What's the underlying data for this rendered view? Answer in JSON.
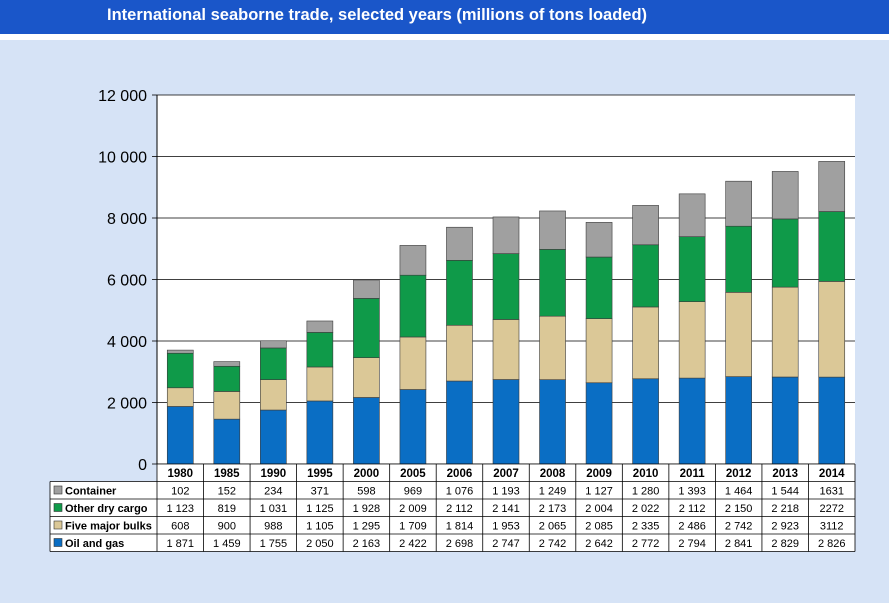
{
  "header": {
    "title": "International seaborne trade, selected years (millions of tons loaded)"
  },
  "colors": {
    "header_bg": "#1a56c9",
    "page_bg": "#d6e3f6"
  },
  "chart_data": {
    "type": "bar",
    "stacked": true,
    "title": "International seaborne trade, selected years (millions of tons loaded)",
    "categories": [
      "1980",
      "1985",
      "1990",
      "1995",
      "2000",
      "2005",
      "2006",
      "2007",
      "2008",
      "2009",
      "2010",
      "2011",
      "2012",
      "2013",
      "2014"
    ],
    "ylim": [
      0,
      12000
    ],
    "yticks": [
      0,
      2000,
      4000,
      6000,
      8000,
      10000,
      12000
    ],
    "ytick_labels": [
      "0",
      "2 000",
      "4 000",
      "6 000",
      "8 000",
      "10 000",
      "12 000"
    ],
    "grid": true,
    "legend": "data table below chart",
    "series": [
      {
        "name": "Oil and gas",
        "color": "#0a6ec4",
        "values": [
          1871,
          1459,
          1755,
          2050,
          2163,
          2422,
          2698,
          2747,
          2742,
          2642,
          2772,
          2794,
          2841,
          2829,
          2826
        ],
        "labels": [
          "1 871",
          "1 459",
          "1 755",
          "2 050",
          "2 163",
          "2 422",
          "2 698",
          "2 747",
          "2 742",
          "2 642",
          "2 772",
          "2 794",
          "2 841",
          "2 829",
          "2 826"
        ]
      },
      {
        "name": "Five major bulks",
        "color": "#dbc897",
        "values": [
          608,
          900,
          988,
          1105,
          1295,
          1709,
          1814,
          1953,
          2065,
          2085,
          2335,
          2486,
          2742,
          2923,
          3112
        ],
        "labels": [
          "608",
          "900",
          "988",
          "1 105",
          "1 295",
          "1 709",
          "1 814",
          "1 953",
          "2 065",
          "2 085",
          "2 335",
          "2 486",
          "2 742",
          "2 923",
          "3112"
        ]
      },
      {
        "name": "Other dry cargo",
        "color": "#0f9a49",
        "values": [
          1123,
          819,
          1031,
          1125,
          1928,
          2009,
          2112,
          2141,
          2173,
          2004,
          2022,
          2112,
          2150,
          2218,
          2272
        ],
        "labels": [
          "1 123",
          "819",
          "1 031",
          "1 125",
          "1 928",
          "2 009",
          "2 112",
          "2 141",
          "2 173",
          "2 004",
          "2 022",
          "2 112",
          "2 150",
          "2 218",
          "2272"
        ]
      },
      {
        "name": "Container",
        "color": "#a0a0a0",
        "values": [
          102,
          152,
          234,
          371,
          598,
          969,
          1076,
          1193,
          1249,
          1127,
          1280,
          1393,
          1464,
          1544,
          1631
        ],
        "labels": [
          "102",
          "152",
          "234",
          "371",
          "598",
          "969",
          "1 076",
          "1 193",
          "1 249",
          "1 127",
          "1 280",
          "1 393",
          "1 464",
          "1 544",
          "1631"
        ]
      }
    ],
    "table_row_order": [
      "Container",
      "Other dry cargo",
      "Five major bulks",
      "Oil and gas"
    ]
  }
}
